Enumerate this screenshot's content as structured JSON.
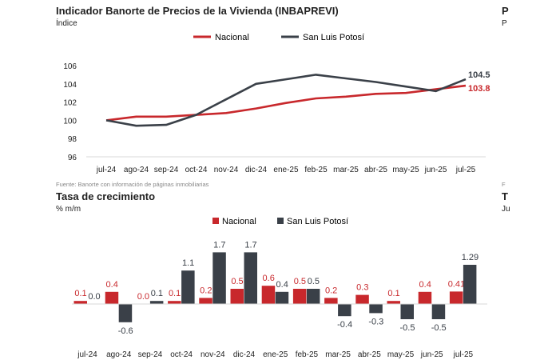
{
  "colors": {
    "nacional": "#c8282c",
    "slp": "#3a4048",
    "axis": "#d9d9d9",
    "text": "#222222"
  },
  "page": {
    "right_cut_title_1": "P",
    "right_cut_sub_1": "P",
    "right_cut_title_2": "T",
    "right_cut_sub_2": "Ju",
    "right_cut_src": "F"
  },
  "chart_data": [
    {
      "type": "line",
      "title": "Indicador Banorte de Precios de la Vivienda (INBAPREVI)",
      "ylabel": "Índice",
      "categories": [
        "jul-24",
        "ago-24",
        "sep-24",
        "oct-24",
        "nov-24",
        "dic-24",
        "ene-25",
        "feb-25",
        "mar-25",
        "abr-25",
        "may-25",
        "jun-25",
        "jul-25"
      ],
      "ylim": [
        96,
        106
      ],
      "yticks": [
        "96",
        "98",
        "100",
        "102",
        "104",
        "106"
      ],
      "series": [
        {
          "name": "Nacional",
          "values": [
            100.0,
            100.4,
            100.4,
            100.6,
            100.8,
            101.3,
            101.9,
            102.4,
            102.6,
            102.9,
            103.0,
            103.4,
            103.8
          ],
          "end_label": "103.8"
        },
        {
          "name": "San Luis Potosí",
          "values": [
            100.0,
            99.4,
            99.5,
            100.6,
            102.3,
            104.0,
            104.5,
            105.0,
            104.6,
            104.2,
            103.7,
            103.2,
            104.5
          ],
          "end_label": "104.5"
        }
      ],
      "source": "Fuente: Banorte con información de páginas inmobiliarias"
    },
    {
      "type": "bar",
      "title": "Tasa de crecimiento",
      "ylabel": "% m/m",
      "categories": [
        "jul-24",
        "ago-24",
        "sep-24",
        "oct-24",
        "nov-24",
        "dic-24",
        "ene-25",
        "feb-25",
        "mar-25",
        "abr-25",
        "may-25",
        "jun-25",
        "jul-25"
      ],
      "series": [
        {
          "name": "Nacional",
          "values": [
            0.1,
            0.4,
            0.0,
            0.1,
            0.2,
            0.5,
            0.6,
            0.5,
            0.2,
            0.3,
            0.1,
            0.4,
            0.41
          ],
          "labels": [
            "0.1",
            "0.4",
            "0.0",
            "0.1",
            "0.2",
            "0.5",
            "0.6",
            "0.5",
            "0.2",
            "0.3",
            "0.1",
            "0.4",
            "0.41"
          ]
        },
        {
          "name": "San Luis Potosí",
          "values": [
            0.0,
            -0.6,
            0.1,
            1.1,
            1.7,
            1.7,
            0.4,
            0.5,
            -0.4,
            -0.3,
            -0.5,
            -0.5,
            1.29
          ],
          "labels": [
            "0.0",
            "-0.6",
            "0.1",
            "1.1",
            "1.7",
            "1.7",
            "0.4",
            "0.5",
            "-0.4",
            "-0.3",
            "-0.5",
            "-0.5",
            "1.29"
          ]
        }
      ]
    }
  ]
}
